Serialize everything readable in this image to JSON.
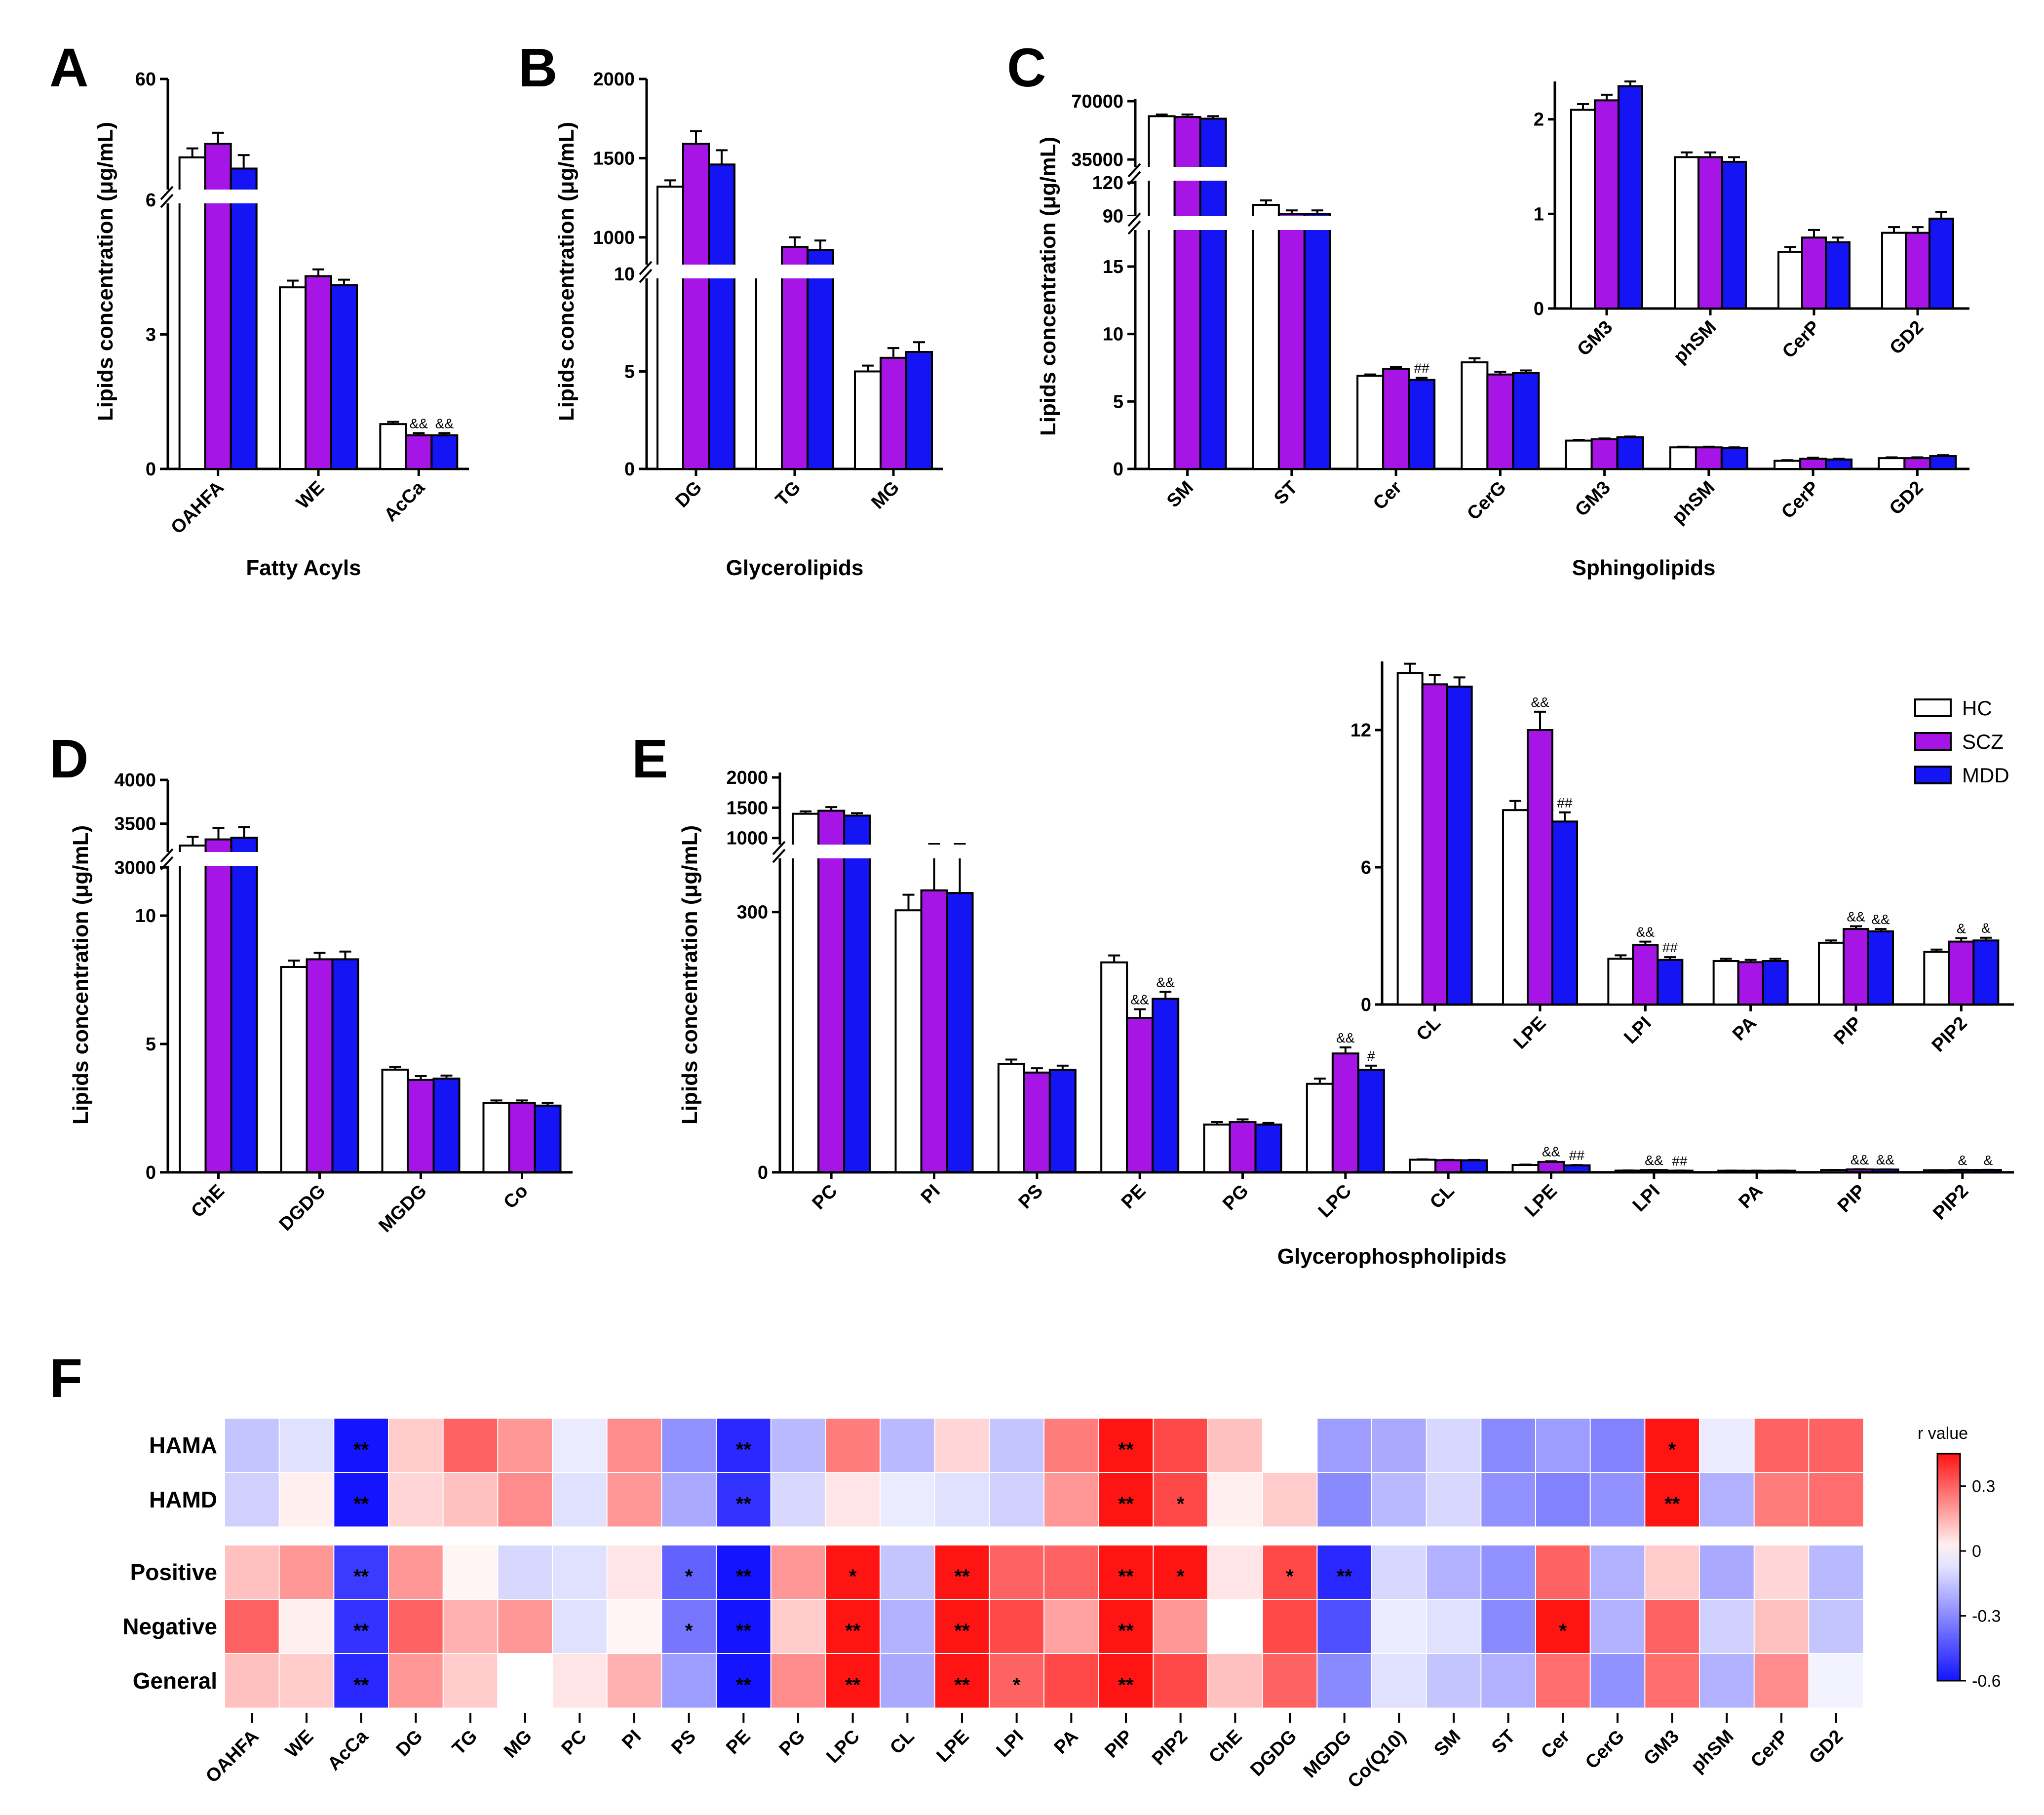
{
  "figure": {
    "legend": [
      {
        "label": "HC",
        "color": "#ffffff"
      },
      {
        "label": "SCZ",
        "color": "#a614e6"
      },
      {
        "label": "MDD",
        "color": "#1414f5"
      }
    ]
  },
  "chart_data": [
    {
      "panel": "A",
      "type": "bar",
      "xlabel": "Fatty Acyls",
      "ylabel": "Lipids concentration (μg/mL)",
      "categories": [
        "OAHFA",
        "WE",
        "AcCa"
      ],
      "series": [
        {
          "name": "HC",
          "values": [
            25,
            4.05,
            1.0
          ],
          "errors": [
            4,
            0.15,
            0.05
          ]
        },
        {
          "name": "SCZ",
          "values": [
            31,
            4.3,
            0.75
          ],
          "errors": [
            5,
            0.15,
            0.05
          ]
        },
        {
          "name": "MDD",
          "values": [
            20,
            4.1,
            0.75
          ],
          "errors": [
            6,
            0.12,
            0.05
          ]
        }
      ],
      "annotations": [
        [
          "",
          "",
          ""
        ],
        [
          "",
          "",
          "&&"
        ],
        [
          "",
          "",
          "&&"
        ]
      ],
      "axis_break": "6 to 6",
      "yticks": [
        "0",
        "3",
        "6",
        "60"
      ]
    },
    {
      "panel": "B",
      "type": "bar",
      "xlabel": "Glycerolipids",
      "ylabel": "Lipids concentration (μg/mL)",
      "categories": [
        "DG",
        "TG",
        "MG"
      ],
      "series": [
        {
          "name": "HC",
          "values": [
            1320,
            800,
            5.0
          ],
          "errors": [
            40,
            20,
            0.3
          ]
        },
        {
          "name": "SCZ",
          "values": [
            1590,
            940,
            5.7
          ],
          "errors": [
            80,
            60,
            0.5
          ]
        },
        {
          "name": "MDD",
          "values": [
            1460,
            920,
            6.0
          ],
          "errors": [
            90,
            60,
            0.5
          ]
        }
      ],
      "annotations": [
        [
          "",
          "",
          ""
        ],
        [
          "",
          "",
          ""
        ],
        [
          "",
          "",
          ""
        ]
      ],
      "axis_break": "10 to 10",
      "yticks": [
        "0",
        "5",
        "10",
        "1000",
        "1500",
        "2000"
      ]
    },
    {
      "panel": "C",
      "type": "bar",
      "xlabel": "Sphingolipids",
      "ylabel": "Lipids concentration (μg/mL)",
      "categories": [
        "SM",
        "ST",
        "Cer",
        "CerG",
        "GM3",
        "phSM",
        "CerP",
        "GD2"
      ],
      "series": [
        {
          "name": "HC",
          "values": [
            61000,
            100,
            6.9,
            7.9,
            2.1,
            1.6,
            0.6,
            0.8
          ],
          "errors": [
            1000,
            4,
            0.1,
            0.3,
            0.06,
            0.05,
            0.05,
            0.06
          ]
        },
        {
          "name": "SCZ",
          "values": [
            60500,
            92,
            7.4,
            7.0,
            2.2,
            1.6,
            0.75,
            0.8
          ],
          "errors": [
            1500,
            3,
            0.15,
            0.2,
            0.06,
            0.05,
            0.08,
            0.06
          ]
        },
        {
          "name": "MDD",
          "values": [
            59500,
            92,
            6.6,
            7.1,
            2.35,
            1.55,
            0.7,
            0.95
          ],
          "errors": [
            1500,
            3,
            0.15,
            0.2,
            0.05,
            0.05,
            0.05,
            0.07
          ]
        }
      ],
      "annotations": [
        [
          "",
          "",
          "",
          "",
          "",
          "",
          "",
          ""
        ],
        [
          "",
          "",
          "",
          "",
          "",
          "",
          "",
          ""
        ],
        [
          "",
          "",
          "##",
          "",
          "",
          "",
          "",
          ""
        ]
      ],
      "axis_breaks": [
        "15 to 90",
        "120 to 35000"
      ],
      "yticks": [
        "0",
        "5",
        "10",
        "15",
        "90",
        "120",
        "35000",
        "70000"
      ],
      "inset": {
        "categories": [
          "GM3",
          "phSM",
          "CerP",
          "GD2"
        ],
        "series": [
          {
            "name": "HC",
            "values": [
              2.1,
              1.6,
              0.6,
              0.8
            ],
            "errors": [
              0.06,
              0.05,
              0.05,
              0.06
            ]
          },
          {
            "name": "SCZ",
            "values": [
              2.2,
              1.6,
              0.75,
              0.8
            ],
            "errors": [
              0.06,
              0.05,
              0.08,
              0.06
            ]
          },
          {
            "name": "MDD",
            "values": [
              2.35,
              1.55,
              0.7,
              0.95
            ],
            "errors": [
              0.05,
              0.05,
              0.05,
              0.07
            ]
          }
        ],
        "ylim": [
          0,
          2.4
        ],
        "yticks": [
          "0",
          "1",
          "2"
        ]
      }
    },
    {
      "panel": "D",
      "type": "bar",
      "xlabel": "",
      "ylabel": "Lipids concentration (μg/mL)",
      "categories": [
        "ChE",
        "DGDG",
        "MGDG",
        "Co"
      ],
      "series": [
        {
          "name": "HC",
          "values": [
            3250,
            8.0,
            4.0,
            2.7
          ],
          "errors": [
            100,
            0.25,
            0.1,
            0.1
          ]
        },
        {
          "name": "SCZ",
          "values": [
            3320,
            8.3,
            3.6,
            2.7
          ],
          "errors": [
            130,
            0.25,
            0.15,
            0.1
          ]
        },
        {
          "name": "MDD",
          "values": [
            3340,
            8.3,
            3.65,
            2.6
          ],
          "errors": [
            120,
            0.3,
            0.12,
            0.1
          ]
        }
      ],
      "annotations": [
        [
          "",
          "",
          "",
          ""
        ],
        [
          "",
          "",
          "",
          ""
        ],
        [
          "",
          "",
          "",
          ""
        ]
      ],
      "axis_break": "10 to 3000",
      "yticks": [
        "0",
        "5",
        "10",
        "3000",
        "3500",
        "4000"
      ]
    },
    {
      "panel": "E",
      "type": "bar",
      "xlabel": "Glycerophospholipids",
      "ylabel": "Lipids concentration (μg/mL)",
      "categories": [
        "PC",
        "PI",
        "PS",
        "PE",
        "PG",
        "LPC",
        "CL",
        "LPE",
        "LPI",
        "PA",
        "PIP",
        "PIP2"
      ],
      "series": [
        {
          "name": "HC",
          "values": [
            1400,
            302,
            125,
            242,
            55,
            102,
            14.5,
            8.5,
            2.0,
            1.9,
            2.7,
            2.3
          ],
          "errors": [
            40,
            18,
            5,
            8,
            3,
            6,
            0.4,
            0.4,
            0.15,
            0.1,
            0.1,
            0.1
          ]
        },
        {
          "name": "SCZ",
          "values": [
            1450,
            325,
            115,
            178,
            58,
            137,
            14.0,
            12.0,
            2.6,
            1.85,
            3.3,
            2.75
          ],
          "errors": [
            60,
            25,
            5,
            10,
            3,
            7,
            0.4,
            0.8,
            0.15,
            0.1,
            0.12,
            0.15
          ]
        },
        {
          "name": "MDD",
          "values": [
            1370,
            322,
            118,
            200,
            55,
            118,
            13.9,
            8.0,
            1.95,
            1.9,
            3.2,
            2.8
          ],
          "errors": [
            40,
            20,
            5,
            8,
            2,
            5,
            0.4,
            0.4,
            0.12,
            0.1,
            0.1,
            0.12
          ]
        }
      ],
      "annotations": [
        [
          "",
          "",
          "",
          "",
          "",
          "",
          "",
          "",
          "",
          "",
          "",
          ""
        ],
        [
          "",
          "",
          "",
          "&&",
          "",
          "&&",
          "",
          "&&",
          "&&",
          "",
          "&&",
          "&"
        ],
        [
          "",
          "",
          "",
          "&&",
          "",
          "#",
          "",
          "##",
          "##",
          "",
          "&&",
          "&"
        ]
      ],
      "axis_break": "1000",
      "yticks": [
        "0",
        "300",
        "1000",
        "1500",
        "2000"
      ],
      "inset": {
        "categories": [
          "CL",
          "LPE",
          "LPI",
          "PA",
          "PIP",
          "PIP2"
        ],
        "ylim": [
          0,
          15
        ],
        "yticks": [
          "0",
          "6",
          "12"
        ]
      }
    },
    {
      "panel": "F",
      "type": "heatmap",
      "title": "r value",
      "colorbar": {
        "min": -0.6,
        "max": 0.45,
        "ticks": [
          "0.3",
          "0",
          "-0.3",
          "-0.6"
        ],
        "tick_values": [
          0.3,
          0,
          -0.3,
          -0.6
        ]
      },
      "columns": [
        "OAHFA",
        "WE",
        "AcCa",
        "DG",
        "TG",
        "MG",
        "PC",
        "PI",
        "PS",
        "PE",
        "PG",
        "LPC",
        "CL",
        "LPE",
        "LPI",
        "PA",
        "PIP",
        "PIP2",
        "ChE",
        "DGDG",
        "MGDG",
        "Co(Q10)",
        "SM",
        "ST",
        "Cer",
        "CerG",
        "GM3",
        "phSM",
        "CerP",
        "GD2"
      ],
      "rows": [
        "HAMA",
        "HAMD",
        "Positive",
        "Negative",
        "General"
      ],
      "values": [
        [
          -0.15,
          -0.08,
          -0.62,
          0.1,
          0.3,
          0.2,
          -0.05,
          0.22,
          -0.28,
          -0.55,
          -0.18,
          0.25,
          -0.18,
          0.08,
          -0.15,
          0.25,
          0.6,
          0.35,
          0.12,
          0.0,
          -0.25,
          -0.22,
          -0.1,
          -0.3,
          -0.25,
          -0.32,
          0.55,
          -0.05,
          0.3,
          0.3
        ],
        [
          -0.12,
          0.03,
          -0.6,
          0.08,
          0.12,
          0.22,
          -0.08,
          0.2,
          -0.22,
          -0.52,
          -0.1,
          0.05,
          -0.05,
          -0.08,
          -0.12,
          0.2,
          0.55,
          0.35,
          0.03,
          0.1,
          -0.3,
          -0.18,
          -0.1,
          -0.28,
          -0.32,
          -0.28,
          0.6,
          -0.2,
          0.25,
          0.28
        ],
        [
          0.12,
          0.2,
          -0.5,
          0.2,
          0.02,
          -0.1,
          -0.08,
          0.05,
          -0.4,
          -0.6,
          0.2,
          0.45,
          -0.15,
          0.6,
          0.3,
          0.3,
          0.72,
          0.45,
          0.05,
          0.35,
          -0.55,
          -0.1,
          -0.2,
          -0.28,
          0.3,
          -0.2,
          0.1,
          -0.22,
          0.08,
          -0.18
        ],
        [
          0.3,
          0.03,
          -0.52,
          0.3,
          0.15,
          0.2,
          -0.08,
          0.02,
          -0.35,
          -0.6,
          0.1,
          0.62,
          -0.2,
          0.7,
          0.35,
          0.18,
          0.6,
          0.2,
          0.0,
          0.35,
          -0.45,
          -0.05,
          -0.08,
          -0.3,
          0.45,
          -0.2,
          0.3,
          -0.12,
          0.12,
          -0.15
        ],
        [
          0.12,
          0.1,
          -0.55,
          0.2,
          0.1,
          0.0,
          0.05,
          0.15,
          -0.25,
          -0.6,
          0.22,
          0.55,
          -0.22,
          0.6,
          0.3,
          0.35,
          0.75,
          0.35,
          0.12,
          0.3,
          -0.3,
          -0.08,
          -0.15,
          -0.2,
          0.28,
          -0.28,
          0.28,
          -0.2,
          0.22,
          -0.03
        ]
      ],
      "significance": [
        [
          "",
          "",
          "**",
          "",
          "",
          "",
          "",
          "",
          "",
          "**",
          "",
          "",
          "",
          "",
          "",
          "",
          "**",
          "",
          "",
          "",
          "",
          "",
          "",
          "",
          "",
          "",
          "*",
          "",
          "",
          ""
        ],
        [
          "",
          "",
          "**",
          "",
          "",
          "",
          "",
          "",
          "",
          "**",
          "",
          "",
          "",
          "",
          "",
          "",
          "**",
          "*",
          "",
          "",
          "",
          "",
          "",
          "",
          "",
          "",
          "**",
          "",
          "",
          ""
        ],
        [
          "",
          "",
          "**",
          "",
          "",
          "",
          "",
          "",
          "*",
          "**",
          "",
          "*",
          "",
          "**",
          "",
          "",
          "**",
          "*",
          "",
          "*",
          "**",
          "",
          "",
          "",
          "",
          "",
          "",
          "",
          "",
          ""
        ],
        [
          "",
          "",
          "**",
          "",
          "",
          "",
          "",
          "",
          "*",
          "**",
          "",
          "**",
          "",
          "**",
          "",
          "",
          "**",
          "",
          "",
          "",
          "",
          "",
          "",
          "",
          "*",
          "",
          "",
          "",
          "",
          ""
        ],
        [
          "",
          "",
          "**",
          "",
          "",
          "",
          "",
          "",
          "",
          "**",
          "",
          "**",
          "",
          "**",
          "*",
          "",
          "**",
          "",
          "",
          "",
          "",
          "",
          "",
          "",
          "",
          "",
          "",
          "",
          "",
          ""
        ]
      ]
    }
  ]
}
